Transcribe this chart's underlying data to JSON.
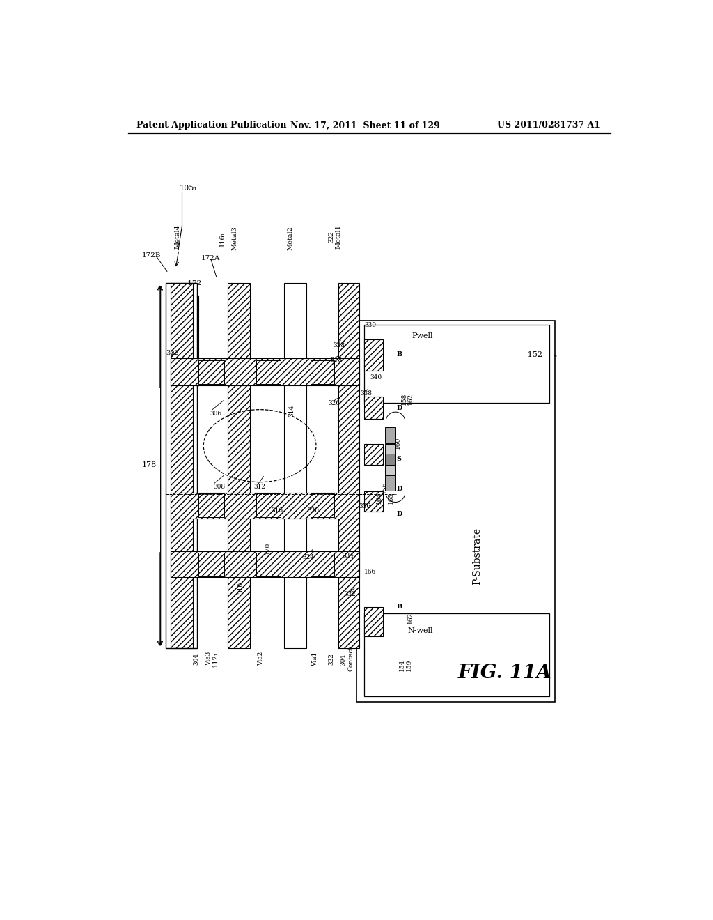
{
  "bg_color": "#ffffff",
  "header_left": "Patent Application Publication",
  "header_mid": "Nov. 17, 2011  Sheet 11 of 129",
  "header_right": "US 2011/0281737 A1",
  "fig_label": "FIG. 11A",
  "p_substrate_label": "P-Substrate"
}
